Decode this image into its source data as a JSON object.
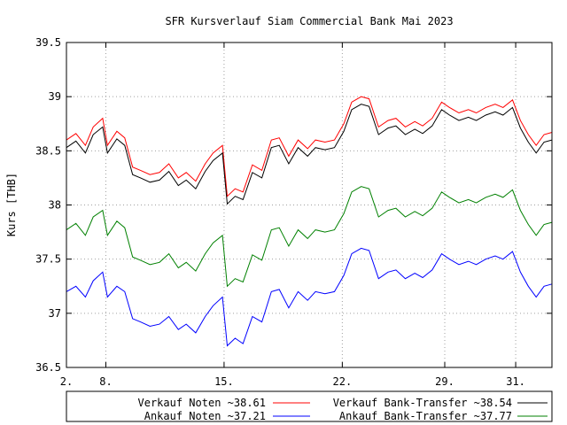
{
  "chart_data": {
    "type": "line",
    "title": "SFR Kursverlauf Siam Commercial Bank Mai 2023",
    "ylabel": "Kurs [THB]",
    "xlabel": "",
    "xlim": [
      2,
      32.8
    ],
    "ylim": [
      36.5,
      39.5
    ],
    "grid": true,
    "legend_position": "bottom",
    "x_ticks": [
      {
        "value": 2,
        "label": "2."
      },
      {
        "value": 4.5,
        "label": "8."
      },
      {
        "value": 12,
        "label": "15."
      },
      {
        "value": 19.5,
        "label": "22."
      },
      {
        "value": 26,
        "label": "29."
      },
      {
        "value": 30.5,
        "label": "31."
      }
    ],
    "y_ticks": [
      {
        "value": 36.5,
        "label": "36.5"
      },
      {
        "value": 37,
        "label": "37"
      },
      {
        "value": 37.5,
        "label": "37.5"
      },
      {
        "value": 38,
        "label": "38"
      },
      {
        "value": 38.5,
        "label": "38.5"
      },
      {
        "value": 39,
        "label": "39"
      },
      {
        "value": 39.5,
        "label": "39.5"
      }
    ],
    "x": [
      2.0,
      2.6,
      3.2,
      3.7,
      4.3,
      4.6,
      5.2,
      5.7,
      6.2,
      6.7,
      7.3,
      7.9,
      8.5,
      9.1,
      9.6,
      10.2,
      10.8,
      11.3,
      11.9,
      12.2,
      12.7,
      13.2,
      13.8,
      14.4,
      15.0,
      15.5,
      16.1,
      16.7,
      17.3,
      17.8,
      18.4,
      19.0,
      19.6,
      20.1,
      20.7,
      21.2,
      21.8,
      22.4,
      22.9,
      23.5,
      24.1,
      24.6,
      25.2,
      25.8,
      26.3,
      26.9,
      27.5,
      28.0,
      28.6,
      29.2,
      29.7,
      30.3,
      30.8,
      31.3,
      31.8,
      32.3,
      32.8
    ],
    "series": [
      {
        "name": "Verkauf Noten ~38.61",
        "color": "#ff0000",
        "values": [
          38.6,
          38.66,
          38.55,
          38.72,
          38.8,
          38.55,
          38.68,
          38.62,
          38.35,
          38.32,
          38.28,
          38.3,
          38.38,
          38.25,
          38.3,
          38.22,
          38.38,
          38.48,
          38.55,
          38.08,
          38.15,
          38.12,
          38.37,
          38.32,
          38.6,
          38.62,
          38.45,
          38.6,
          38.52,
          38.6,
          38.58,
          38.6,
          38.75,
          38.95,
          39.0,
          38.98,
          38.72,
          38.78,
          38.8,
          38.72,
          38.77,
          38.73,
          38.8,
          38.95,
          38.9,
          38.85,
          38.88,
          38.85,
          38.9,
          38.93,
          38.9,
          38.97,
          38.78,
          38.65,
          38.55,
          38.65,
          38.67
        ]
      },
      {
        "name": "Ankauf  Noten ~37.21",
        "color": "#0000ff",
        "values": [
          37.2,
          37.25,
          37.15,
          37.3,
          37.38,
          37.15,
          37.25,
          37.2,
          36.95,
          36.92,
          36.88,
          36.9,
          36.97,
          36.85,
          36.9,
          36.82,
          36.97,
          37.07,
          37.15,
          36.7,
          36.77,
          36.72,
          36.97,
          36.92,
          37.2,
          37.22,
          37.05,
          37.2,
          37.12,
          37.2,
          37.18,
          37.2,
          37.35,
          37.55,
          37.6,
          37.58,
          37.32,
          37.38,
          37.4,
          37.32,
          37.37,
          37.33,
          37.4,
          37.55,
          37.5,
          37.45,
          37.48,
          37.45,
          37.5,
          37.53,
          37.5,
          37.57,
          37.38,
          37.25,
          37.15,
          37.25,
          37.27
        ]
      },
      {
        "name": "Verkauf Bank-Transfer ~38.54",
        "color": "#000000",
        "values": [
          38.53,
          38.59,
          38.48,
          38.65,
          38.72,
          38.48,
          38.61,
          38.55,
          38.28,
          38.25,
          38.21,
          38.23,
          38.31,
          38.18,
          38.23,
          38.15,
          38.31,
          38.41,
          38.48,
          38.01,
          38.08,
          38.05,
          38.3,
          38.25,
          38.53,
          38.55,
          38.38,
          38.53,
          38.45,
          38.53,
          38.51,
          38.53,
          38.68,
          38.88,
          38.93,
          38.91,
          38.65,
          38.71,
          38.73,
          38.65,
          38.7,
          38.66,
          38.73,
          38.88,
          38.83,
          38.78,
          38.81,
          38.78,
          38.83,
          38.86,
          38.83,
          38.9,
          38.71,
          38.58,
          38.48,
          38.58,
          38.6
        ]
      },
      {
        "name": "Ankauf  Bank-Transfer ~37.77",
        "color": "#008000",
        "values": [
          37.77,
          37.83,
          37.72,
          37.89,
          37.95,
          37.72,
          37.85,
          37.79,
          37.52,
          37.49,
          37.45,
          37.47,
          37.55,
          37.42,
          37.47,
          37.39,
          37.55,
          37.65,
          37.72,
          37.25,
          37.32,
          37.29,
          37.54,
          37.49,
          37.77,
          37.79,
          37.62,
          37.77,
          37.69,
          37.77,
          37.75,
          37.77,
          37.92,
          38.12,
          38.17,
          38.15,
          37.89,
          37.95,
          37.97,
          37.89,
          37.94,
          37.9,
          37.97,
          38.12,
          38.07,
          38.02,
          38.05,
          38.02,
          38.07,
          38.1,
          38.07,
          38.14,
          37.95,
          37.82,
          37.72,
          37.82,
          37.84
        ]
      }
    ]
  }
}
